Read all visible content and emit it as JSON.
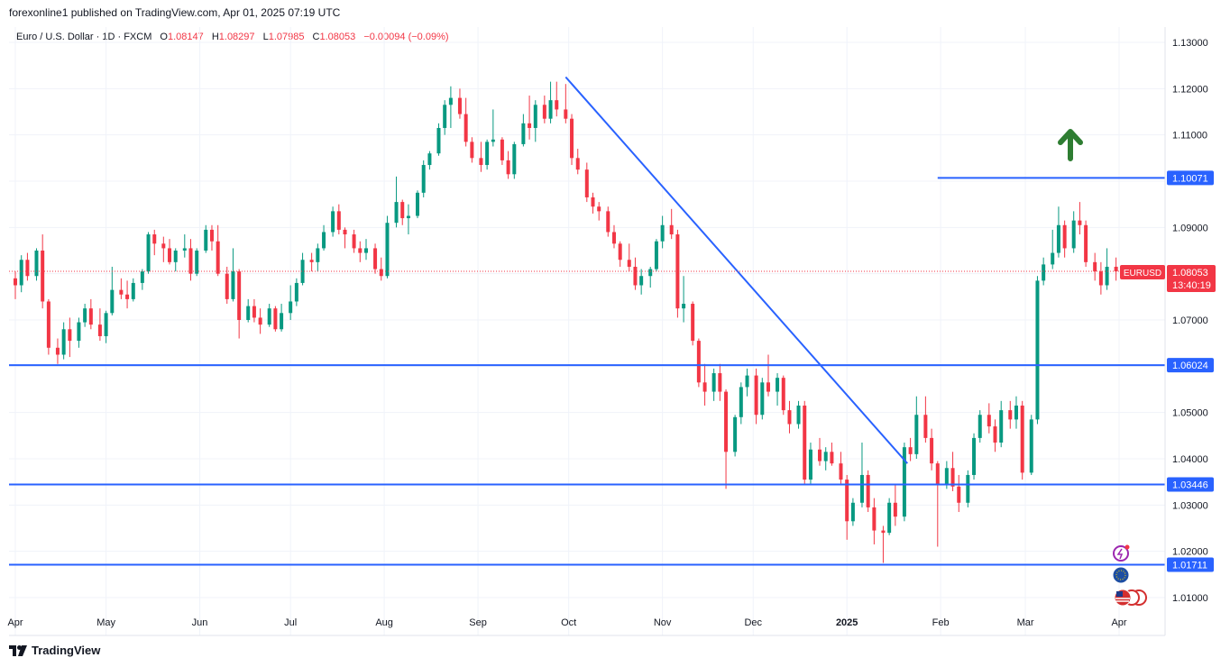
{
  "header": {
    "published": "forexonline1 published on TradingView.com, Apr 01, 2025 07:19 UTC"
  },
  "legend": {
    "symbol": "Euro / U.S. Dollar · 1D · FXCM",
    "open_label": "O",
    "open": "1.08147",
    "high_label": "H",
    "high": "1.08297",
    "low_label": "L",
    "low": "1.07985",
    "close_label": "C",
    "close": "1.08053",
    "change": "−0.00094 (−0.09%)"
  },
  "price_tag": {
    "symbol": "EURUSD",
    "price": "1.08053",
    "countdown": "13:40:19"
  },
  "footer": {
    "brand": "TradingView"
  },
  "colors": {
    "up": "#089981",
    "down": "#f23645",
    "line": "#2962ff",
    "arrow": "#2e7d32",
    "grid": "#f0f3fa"
  },
  "chart_data": {
    "type": "candlestick",
    "ylim": [
      1.005,
      1.1355
    ],
    "y_ticks": [
      "1.13000",
      "1.12000",
      "1.11000",
      "1.10000",
      "1.09000",
      "1.08000",
      "1.07000",
      "1.06000",
      "1.05000",
      "1.04000",
      "1.03000",
      "1.02000",
      "1.01000"
    ],
    "x_ticks": [
      {
        "label": "Apr",
        "date": "2024-04-01"
      },
      {
        "label": "May",
        "date": "2024-05-01"
      },
      {
        "label": "Jun",
        "date": "2024-06-01"
      },
      {
        "label": "Jul",
        "date": "2024-07-01"
      },
      {
        "label": "Aug",
        "date": "2024-08-01"
      },
      {
        "label": "Sep",
        "date": "2024-09-01"
      },
      {
        "label": "Oct",
        "date": "2024-10-01"
      },
      {
        "label": "Nov",
        "date": "2024-11-01"
      },
      {
        "label": "Dec",
        "date": "2024-12-01"
      },
      {
        "label": "2025",
        "date": "2025-01-01"
      },
      {
        "label": "Feb",
        "date": "2025-02-01"
      },
      {
        "label": "Mar",
        "date": "2025-03-01"
      },
      {
        "label": "Apr",
        "date": "2025-04-01"
      }
    ],
    "candles": [
      [
        "2024-04-01",
        1.079,
        1.0805,
        1.0745,
        1.0775
      ],
      [
        "2024-04-03",
        1.0775,
        1.084,
        1.076,
        1.083
      ],
      [
        "2024-04-05",
        1.083,
        1.0845,
        1.0785,
        1.0795
      ],
      [
        "2024-04-08",
        1.0795,
        1.0855,
        1.0785,
        1.085
      ],
      [
        "2024-04-10",
        1.085,
        1.0885,
        1.0725,
        1.074
      ],
      [
        "2024-04-12",
        1.074,
        1.0745,
        1.0625,
        1.064
      ],
      [
        "2024-04-15",
        1.064,
        1.066,
        1.0605,
        1.0625
      ],
      [
        "2024-04-17",
        1.0625,
        1.0695,
        1.0615,
        1.068
      ],
      [
        "2024-04-19",
        1.068,
        1.0705,
        1.062,
        1.0655
      ],
      [
        "2024-04-22",
        1.0655,
        1.0705,
        1.064,
        1.0695
      ],
      [
        "2024-04-24",
        1.0695,
        1.0735,
        1.0685,
        1.0725
      ],
      [
        "2024-04-26",
        1.0725,
        1.0745,
        1.068,
        1.069
      ],
      [
        "2024-04-29",
        1.069,
        1.0725,
        1.0655,
        1.0665
      ],
      [
        "2024-05-01",
        1.0665,
        1.072,
        1.065,
        1.0715
      ],
      [
        "2024-05-03",
        1.0715,
        1.0815,
        1.071,
        1.0765
      ],
      [
        "2024-05-06",
        1.0765,
        1.079,
        1.0745,
        1.0755
      ],
      [
        "2024-05-08",
        1.0755,
        1.0785,
        1.0725,
        1.0745
      ],
      [
        "2024-05-10",
        1.0745,
        1.079,
        1.074,
        1.078
      ],
      [
        "2024-05-13",
        1.078,
        1.081,
        1.0765,
        1.0805
      ],
      [
        "2024-05-15",
        1.0805,
        1.089,
        1.08,
        1.0885
      ],
      [
        "2024-05-17",
        1.0885,
        1.0895,
        1.084,
        1.0865
      ],
      [
        "2024-05-20",
        1.0865,
        1.088,
        1.0825,
        1.0855
      ],
      [
        "2024-05-22",
        1.0855,
        1.0875,
        1.082,
        1.0825
      ],
      [
        "2024-05-24",
        1.0825,
        1.0855,
        1.0805,
        1.085
      ],
      [
        "2024-05-27",
        1.085,
        1.0885,
        1.0835,
        1.0855
      ],
      [
        "2024-05-29",
        1.0855,
        1.0875,
        1.0785,
        1.08
      ],
      [
        "2024-05-31",
        1.08,
        1.0855,
        1.0795,
        1.085
      ],
      [
        "2024-06-03",
        1.085,
        1.0905,
        1.0845,
        1.0895
      ],
      [
        "2024-06-05",
        1.0895,
        1.0905,
        1.085,
        1.087
      ],
      [
        "2024-06-07",
        1.087,
        1.0905,
        1.0795,
        1.08
      ],
      [
        "2024-06-10",
        1.08,
        1.0815,
        1.0735,
        1.0745
      ],
      [
        "2024-06-12",
        1.0745,
        1.0855,
        1.074,
        1.0805
      ],
      [
        "2024-06-14",
        1.0805,
        1.081,
        1.066,
        1.07
      ],
      [
        "2024-06-17",
        1.07,
        1.0745,
        1.0695,
        1.073
      ],
      [
        "2024-06-19",
        1.073,
        1.0745,
        1.0695,
        1.0705
      ],
      [
        "2024-06-21",
        1.0705,
        1.0725,
        1.067,
        1.069
      ],
      [
        "2024-06-24",
        1.069,
        1.0735,
        1.0685,
        1.0725
      ],
      [
        "2024-06-26",
        1.0725,
        1.073,
        1.0675,
        1.068
      ],
      [
        "2024-06-28",
        1.068,
        1.0735,
        1.0675,
        1.0715
      ],
      [
        "2024-07-01",
        1.0715,
        1.0775,
        1.07,
        1.074
      ],
      [
        "2024-07-03",
        1.074,
        1.079,
        1.073,
        1.078
      ],
      [
        "2024-07-05",
        1.078,
        1.0845,
        1.0775,
        1.083
      ],
      [
        "2024-07-08",
        1.083,
        1.0845,
        1.0805,
        1.0825
      ],
      [
        "2024-07-10",
        1.0825,
        1.0865,
        1.0805,
        1.0855
      ],
      [
        "2024-07-12",
        1.0855,
        1.0905,
        1.085,
        1.089
      ],
      [
        "2024-07-15",
        1.089,
        1.0945,
        1.088,
        1.0935
      ],
      [
        "2024-07-17",
        1.0935,
        1.095,
        1.0885,
        1.0895
      ],
      [
        "2024-07-19",
        1.0895,
        1.09,
        1.0855,
        1.0885
      ],
      [
        "2024-07-22",
        1.0885,
        1.0895,
        1.0845,
        1.0855
      ],
      [
        "2024-07-24",
        1.0855,
        1.087,
        1.0825,
        1.0845
      ],
      [
        "2024-07-26",
        1.0845,
        1.0875,
        1.083,
        1.0855
      ],
      [
        "2024-07-29",
        1.0855,
        1.0865,
        1.08,
        1.081
      ],
      [
        "2024-07-31",
        1.081,
        1.0835,
        1.0785,
        1.0795
      ],
      [
        "2024-08-02",
        1.0795,
        1.0925,
        1.079,
        1.091
      ],
      [
        "2024-08-05",
        1.091,
        1.101,
        1.09,
        1.0955
      ],
      [
        "2024-08-07",
        1.0955,
        1.096,
        1.0905,
        1.092
      ],
      [
        "2024-08-09",
        1.092,
        1.095,
        1.0885,
        1.0925
      ],
      [
        "2024-08-12",
        1.0925,
        1.098,
        1.092,
        1.0975
      ],
      [
        "2024-08-14",
        1.0975,
        1.1045,
        1.0965,
        1.1035
      ],
      [
        "2024-08-16",
        1.1035,
        1.1065,
        1.1025,
        1.106
      ],
      [
        "2024-08-19",
        1.106,
        1.1125,
        1.1055,
        1.1115
      ],
      [
        "2024-08-21",
        1.1115,
        1.1175,
        1.11,
        1.1165
      ],
      [
        "2024-08-23",
        1.1165,
        1.1205,
        1.1115,
        1.118
      ],
      [
        "2024-08-26",
        1.118,
        1.12,
        1.1135,
        1.1145
      ],
      [
        "2024-08-28",
        1.1145,
        1.118,
        1.1075,
        1.1085
      ],
      [
        "2024-08-30",
        1.1085,
        1.1095,
        1.104,
        1.105
      ],
      [
        "2024-09-02",
        1.105,
        1.1085,
        1.102,
        1.1035
      ],
      [
        "2024-09-04",
        1.1035,
        1.109,
        1.1025,
        1.1085
      ],
      [
        "2024-09-06",
        1.1085,
        1.1155,
        1.1075,
        1.109
      ],
      [
        "2024-09-09",
        1.109,
        1.1095,
        1.1035,
        1.1045
      ],
      [
        "2024-09-11",
        1.1045,
        1.1065,
        1.1005,
        1.1015
      ],
      [
        "2024-09-13",
        1.1015,
        1.1085,
        1.1005,
        1.108
      ],
      [
        "2024-09-16",
        1.108,
        1.1145,
        1.1075,
        1.1125
      ],
      [
        "2024-09-18",
        1.1125,
        1.1185,
        1.109,
        1.1115
      ],
      [
        "2024-09-20",
        1.1115,
        1.1175,
        1.1085,
        1.1165
      ],
      [
        "2024-09-23",
        1.1165,
        1.1185,
        1.1125,
        1.1135
      ],
      [
        "2024-09-25",
        1.1135,
        1.1215,
        1.1125,
        1.1175
      ],
      [
        "2024-09-27",
        1.1175,
        1.1215,
        1.114,
        1.1155
      ],
      [
        "2024-09-30",
        1.1155,
        1.121,
        1.1125,
        1.1135
      ],
      [
        "2024-10-02",
        1.1135,
        1.1145,
        1.1035,
        1.105
      ],
      [
        "2024-10-04",
        1.105,
        1.107,
        1.1015,
        1.1025
      ],
      [
        "2024-10-07",
        1.1025,
        1.104,
        1.0955,
        1.0965
      ],
      [
        "2024-10-09",
        1.0965,
        1.0975,
        1.093,
        1.0945
      ],
      [
        "2024-10-11",
        1.0945,
        1.0955,
        1.0915,
        1.0935
      ],
      [
        "2024-10-14",
        1.0935,
        1.0945,
        1.088,
        1.089
      ],
      [
        "2024-10-16",
        1.089,
        1.0905,
        1.0855,
        1.0865
      ],
      [
        "2024-10-18",
        1.0865,
        1.087,
        1.0815,
        1.083
      ],
      [
        "2024-10-21",
        1.083,
        1.0865,
        1.0805,
        1.0815
      ],
      [
        "2024-10-23",
        1.0815,
        1.0835,
        1.0765,
        1.0775
      ],
      [
        "2024-10-25",
        1.0775,
        1.081,
        1.0755,
        1.0795
      ],
      [
        "2024-10-28",
        1.0795,
        1.0815,
        1.077,
        1.081
      ],
      [
        "2024-10-30",
        1.081,
        1.0875,
        1.0805,
        1.087
      ],
      [
        "2024-11-01",
        1.087,
        1.0925,
        1.0855,
        1.0905
      ],
      [
        "2024-11-04",
        1.0905,
        1.094,
        1.0875,
        1.0885
      ],
      [
        "2024-11-06",
        1.0885,
        1.0895,
        1.0705,
        1.0725
      ],
      [
        "2024-11-08",
        1.0725,
        1.0795,
        1.0695,
        1.0735
      ],
      [
        "2024-11-11",
        1.0735,
        1.074,
        1.0645,
        1.0655
      ],
      [
        "2024-11-13",
        1.0655,
        1.066,
        1.0555,
        1.0565
      ],
      [
        "2024-11-15",
        1.0565,
        1.0605,
        1.0515,
        1.0545
      ],
      [
        "2024-11-18",
        1.0545,
        1.0595,
        1.0525,
        1.0585
      ],
      [
        "2024-11-20",
        1.0585,
        1.0605,
        1.0525,
        1.0545
      ],
      [
        "2024-11-22",
        1.0545,
        1.055,
        1.0335,
        1.0415
      ],
      [
        "2024-11-25",
        1.0415,
        1.0495,
        1.0405,
        1.049
      ],
      [
        "2024-11-27",
        1.049,
        1.0565,
        1.0475,
        1.0555
      ],
      [
        "2024-11-29",
        1.0555,
        1.0595,
        1.0535,
        1.058
      ],
      [
        "2024-12-02",
        1.058,
        1.0595,
        1.0475,
        1.0495
      ],
      [
        "2024-12-04",
        1.0495,
        1.0575,
        1.0485,
        1.0565
      ],
      [
        "2024-12-06",
        1.0565,
        1.0625,
        1.0535,
        1.0545
      ],
      [
        "2024-12-09",
        1.0545,
        1.0585,
        1.0515,
        1.0575
      ],
      [
        "2024-12-11",
        1.0575,
        1.058,
        1.0495,
        1.0505
      ],
      [
        "2024-12-13",
        1.0505,
        1.0525,
        1.0455,
        1.0475
      ],
      [
        "2024-12-16",
        1.0475,
        1.0525,
        1.0465,
        1.0515
      ],
      [
        "2024-12-18",
        1.0515,
        1.0525,
        1.0345,
        1.0355
      ],
      [
        "2024-12-20",
        1.0355,
        1.0435,
        1.0345,
        1.042
      ],
      [
        "2024-12-23",
        1.042,
        1.0445,
        1.0385,
        1.0395
      ],
      [
        "2024-12-25",
        1.0395,
        1.0425,
        1.0375,
        1.0415
      ],
      [
        "2024-12-27",
        1.0415,
        1.0435,
        1.0385,
        1.039
      ],
      [
        "2024-12-30",
        1.039,
        1.0415,
        1.0345,
        1.0355
      ],
      [
        "2025-01-01",
        1.0355,
        1.0365,
        1.0225,
        1.0265
      ],
      [
        "2025-01-03",
        1.0265,
        1.0315,
        1.0255,
        1.0305
      ],
      [
        "2025-01-06",
        1.0305,
        1.0435,
        1.0295,
        1.0365
      ],
      [
        "2025-01-08",
        1.0365,
        1.0375,
        1.0285,
        1.0295
      ],
      [
        "2025-01-10",
        1.0295,
        1.0315,
        1.0215,
        1.0245
      ],
      [
        "2025-01-13",
        1.0245,
        1.0255,
        1.0175,
        1.024
      ],
      [
        "2025-01-15",
        1.024,
        1.0315,
        1.0235,
        1.0305
      ],
      [
        "2025-01-17",
        1.0305,
        1.0345,
        1.0255,
        1.0275
      ],
      [
        "2025-01-20",
        1.0275,
        1.0435,
        1.0265,
        1.0425
      ],
      [
        "2025-01-22",
        1.0425,
        1.0445,
        1.0395,
        1.041
      ],
      [
        "2025-01-24",
        1.041,
        1.0535,
        1.04,
        1.0495
      ],
      [
        "2025-01-27",
        1.0495,
        1.0535,
        1.0435,
        1.0445
      ],
      [
        "2025-01-29",
        1.0445,
        1.0465,
        1.0375,
        1.039
      ],
      [
        "2025-01-31",
        1.039,
        1.0395,
        1.021,
        1.0345
      ],
      [
        "2025-02-03",
        1.0345,
        1.0395,
        1.0335,
        1.038
      ],
      [
        "2025-02-05",
        1.038,
        1.0415,
        1.033,
        1.034
      ],
      [
        "2025-02-07",
        1.034,
        1.0365,
        1.0285,
        1.0305
      ],
      [
        "2025-02-10",
        1.0305,
        1.0375,
        1.0295,
        1.0365
      ],
      [
        "2025-02-12",
        1.0365,
        1.0455,
        1.0355,
        1.0445
      ],
      [
        "2025-02-14",
        1.0445,
        1.0505,
        1.0435,
        1.0495
      ],
      [
        "2025-02-17",
        1.0495,
        1.052,
        1.0455,
        1.047
      ],
      [
        "2025-02-19",
        1.047,
        1.0485,
        1.0415,
        1.0435
      ],
      [
        "2025-02-21",
        1.0435,
        1.0525,
        1.0425,
        1.0505
      ],
      [
        "2025-02-24",
        1.0505,
        1.0525,
        1.0465,
        1.0485
      ],
      [
        "2025-02-26",
        1.0485,
        1.0535,
        1.0465,
        1.0515
      ],
      [
        "2025-02-28",
        1.0515,
        1.0525,
        1.0355,
        1.037
      ],
      [
        "2025-03-03",
        1.037,
        1.0495,
        1.0365,
        1.0485
      ],
      [
        "2025-03-05",
        1.0485,
        1.0795,
        1.0475,
        1.0785
      ],
      [
        "2025-03-07",
        1.0785,
        1.0835,
        1.0775,
        1.082
      ],
      [
        "2025-03-10",
        1.082,
        1.0895,
        1.081,
        1.0845
      ],
      [
        "2025-03-12",
        1.0845,
        1.0945,
        1.0835,
        1.0905
      ],
      [
        "2025-03-14",
        1.0905,
        1.0915,
        1.0835,
        1.0855
      ],
      [
        "2025-03-17",
        1.0855,
        1.0935,
        1.0845,
        1.0915
      ],
      [
        "2025-03-19",
        1.0915,
        1.0955,
        1.0885,
        1.0905
      ],
      [
        "2025-03-21",
        1.0905,
        1.0915,
        1.0815,
        1.0825
      ],
      [
        "2025-03-24",
        1.0825,
        1.0845,
        1.0785,
        1.0805
      ],
      [
        "2025-03-26",
        1.0805,
        1.0825,
        1.0755,
        1.0775
      ],
      [
        "2025-03-28",
        1.0775,
        1.0855,
        1.0765,
        1.0815
      ],
      [
        "2025-03-31",
        1.0815,
        1.0835,
        1.0785,
        1.0805
      ]
    ],
    "horizontal_levels": [
      "1.10071",
      "1.06024",
      "1.03446",
      "1.01711"
    ],
    "trendline": {
      "from": [
        "2024-09-30",
        1.1225
      ],
      "to": [
        "2025-01-21",
        1.039
      ]
    },
    "level_start_date": "2025-01-31",
    "current_price": 1.08053
  }
}
